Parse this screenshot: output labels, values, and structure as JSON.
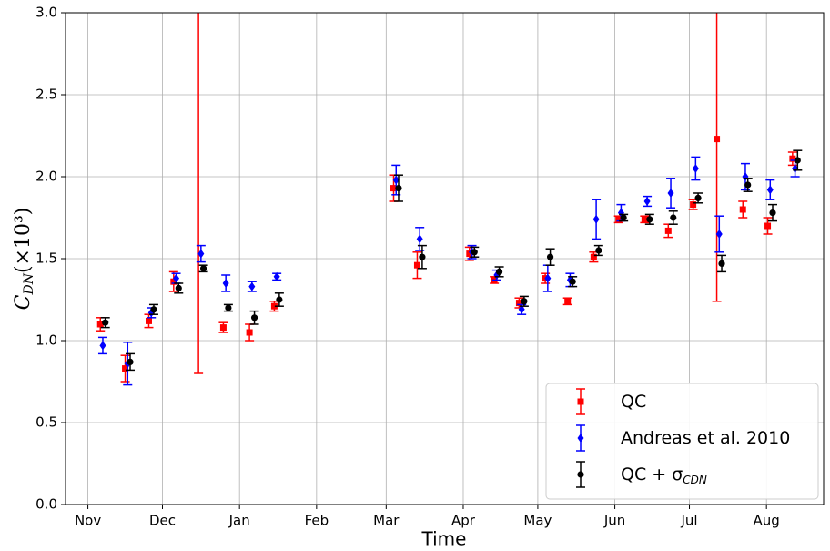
{
  "chart_data": {
    "type": "errorbar",
    "ylabel": "C",
    "ylabel_subscript": "DN",
    "ylabel_unit": "(×10³)",
    "xlabel": "Time",
    "xlim": [
      -9,
      296
    ],
    "xticks": [
      {
        "value": 0,
        "label": "Nov"
      },
      {
        "value": 30,
        "label": "Dec"
      },
      {
        "value": 61,
        "label": "Jan"
      },
      {
        "value": 92,
        "label": "Feb"
      },
      {
        "value": 120,
        "label": "Mar"
      },
      {
        "value": 151,
        "label": "Apr"
      },
      {
        "value": 181,
        "label": "May"
      },
      {
        "value": 212,
        "label": "Jun"
      },
      {
        "value": 242,
        "label": "Jul"
      },
      {
        "value": 273,
        "label": "Aug"
      }
    ],
    "ylim": [
      0,
      3
    ],
    "yticks": [
      {
        "value": 0,
        "label": "0.0"
      },
      {
        "value": 0.5,
        "label": "0.5"
      },
      {
        "value": 1,
        "label": "1.0"
      },
      {
        "value": 1.5,
        "label": "1.5"
      },
      {
        "value": 2,
        "label": "2.0"
      },
      {
        "value": 2.5,
        "label": "2.5"
      },
      {
        "value": 3,
        "label": "3.0"
      }
    ],
    "grid": true,
    "legend": "lower right",
    "series": [
      {
        "name": "QC",
        "color": "#ff0000",
        "marker": "square",
        "x": [
          5,
          15,
          24.5,
          34.5,
          44.5,
          54.5,
          65,
          75,
          123,
          132.5,
          153.5,
          163.5,
          173.5,
          184,
          193,
          203.5,
          213.5,
          224,
          233.5,
          243.5,
          253,
          263.5,
          273.5,
          283.5
        ],
        "values": [
          1.1,
          0.83,
          1.12,
          1.36,
          3.2,
          1.08,
          1.05,
          1.21,
          1.93,
          1.46,
          1.53,
          1.37,
          1.23,
          1.38,
          1.24,
          1.51,
          1.74,
          1.74,
          1.67,
          1.83,
          2.23,
          1.8,
          1.7,
          2.11
        ],
        "errors": [
          0.04,
          0.08,
          0.04,
          0.06,
          2.4,
          0.03,
          0.05,
          0.03,
          0.08,
          0.08,
          0.04,
          0.02,
          0.03,
          0.03,
          0.02,
          0.03,
          0.02,
          0.02,
          0.04,
          0.03,
          0.99,
          0.05,
          0.05,
          0.04
        ]
      },
      {
        "name": "Andreas et al. 2010",
        "color": "#0000ff",
        "marker": "diamond",
        "x": [
          6,
          16,
          25.5,
          35.5,
          45.5,
          55.5,
          66,
          76,
          124,
          133.5,
          154.5,
          164.5,
          174.5,
          185,
          194,
          204.5,
          214.5,
          225,
          234.5,
          244.5,
          254,
          264.5,
          274.5,
          284.5
        ],
        "values": [
          0.97,
          0.86,
          1.17,
          1.38,
          1.53,
          1.35,
          1.33,
          1.39,
          1.98,
          1.62,
          1.54,
          1.4,
          1.19,
          1.38,
          1.37,
          1.74,
          1.78,
          1.85,
          1.9,
          2.05,
          1.65,
          2.0,
          1.92,
          2.05
        ],
        "errors": [
          0.05,
          0.13,
          0.03,
          0.03,
          0.05,
          0.05,
          0.03,
          0.02,
          0.09,
          0.07,
          0.04,
          0.03,
          0.03,
          0.08,
          0.04,
          0.12,
          0.05,
          0.03,
          0.09,
          0.07,
          0.11,
          0.08,
          0.06,
          0.05
        ]
      },
      {
        "name": "QC + σ",
        "name_subscript": "CDN",
        "color": "#000000",
        "marker": "circle",
        "x": [
          7,
          17,
          26.5,
          36.5,
          46.5,
          56.5,
          67,
          77,
          125,
          134.5,
          155.5,
          165.5,
          175.5,
          186,
          195,
          205.5,
          215.5,
          226,
          235.5,
          245.5,
          255,
          265.5,
          275.5,
          285.5
        ],
        "values": [
          1.11,
          0.87,
          1.19,
          1.32,
          1.44,
          1.2,
          1.14,
          1.25,
          1.93,
          1.51,
          1.54,
          1.42,
          1.24,
          1.51,
          1.36,
          1.55,
          1.75,
          1.74,
          1.75,
          1.87,
          1.47,
          1.95,
          1.78,
          2.1
        ],
        "errors": [
          0.03,
          0.05,
          0.03,
          0.03,
          0.02,
          0.02,
          0.04,
          0.04,
          0.08,
          0.07,
          0.03,
          0.03,
          0.03,
          0.05,
          0.03,
          0.03,
          0.02,
          0.03,
          0.04,
          0.03,
          0.05,
          0.04,
          0.05,
          0.06
        ]
      }
    ]
  }
}
